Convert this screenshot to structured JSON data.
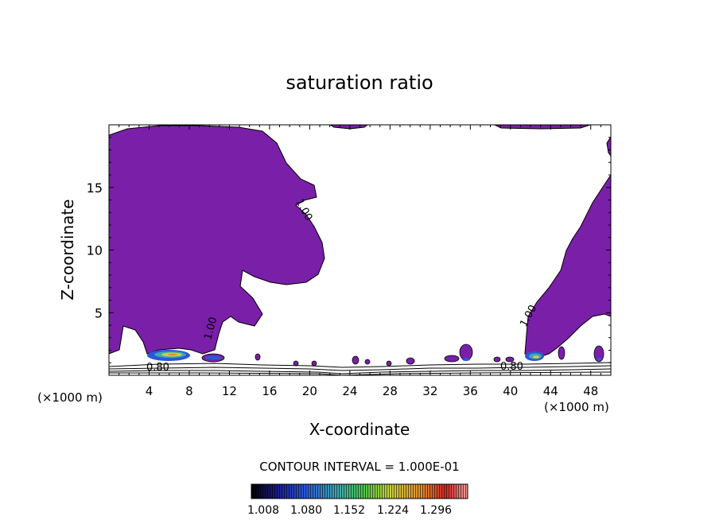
{
  "chart_data": {
    "type": "contour",
    "title": "saturation ratio",
    "xlabel": "X-coordinate",
    "ylabel": "Z-coordinate",
    "x_unit": "(×1000 m)",
    "x_unit_right": "(×1000 m)",
    "xlim": [
      0,
      50
    ],
    "ylim": [
      0,
      20
    ],
    "x_ticks": [
      4,
      8,
      12,
      16,
      20,
      24,
      28,
      32,
      36,
      40,
      44,
      48
    ],
    "y_ticks": [
      5,
      10,
      15
    ],
    "contour_interval_text": "CONTOUR INTERVAL = 1.000E-01",
    "contour_labels": [
      "1.00",
      "1.00",
      "1.00",
      "0.80",
      "0.80"
    ],
    "colorbar": {
      "ticks": [
        "1.008",
        "1.080",
        "1.152",
        "1.224",
        "1.296"
      ],
      "colors": [
        "#000000",
        "#1c1c8c",
        "#2a58d8",
        "#3fa8b0",
        "#4cc44c",
        "#c8d03c",
        "#e0902c",
        "#d02828",
        "#b03030"
      ]
    },
    "fill_color": "#7a1fa8"
  }
}
